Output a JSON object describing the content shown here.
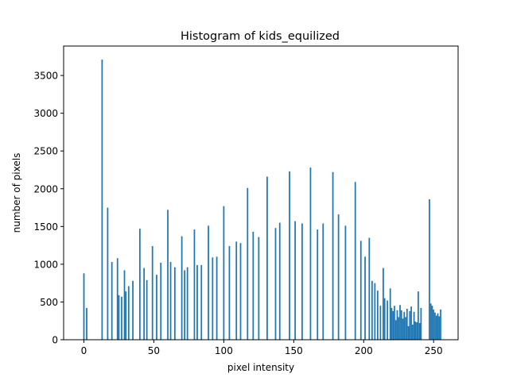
{
  "chart_data": {
    "type": "bar",
    "title": "Histogram of kids_equilized",
    "xlabel": "pixel intensity",
    "ylabel": "number of pixels",
    "xlim": [
      -14,
      268
    ],
    "ylim": [
      0,
      3500
    ],
    "xticks": [
      0,
      50,
      100,
      150,
      200,
      250
    ],
    "yticks": [
      0,
      500,
      1000,
      1500,
      2000,
      2500,
      3000,
      3500
    ],
    "ytick_labels": [
      "0",
      "500",
      "1000",
      "1500",
      "2000",
      "2500",
      "3000",
      "3500"
    ],
    "grid": false,
    "color": "#1f77b4",
    "bins": [
      {
        "x": 0,
        "y": 880
      },
      {
        "x": 2,
        "y": 420
      },
      {
        "x": 13,
        "y": 3710
      },
      {
        "x": 17,
        "y": 1750
      },
      {
        "x": 20,
        "y": 1030
      },
      {
        "x": 24,
        "y": 1080
      },
      {
        "x": 25,
        "y": 590
      },
      {
        "x": 27,
        "y": 570
      },
      {
        "x": 29,
        "y": 920
      },
      {
        "x": 30,
        "y": 640
      },
      {
        "x": 32,
        "y": 710
      },
      {
        "x": 35,
        "y": 780
      },
      {
        "x": 40,
        "y": 1470
      },
      {
        "x": 43,
        "y": 950
      },
      {
        "x": 45,
        "y": 790
      },
      {
        "x": 49,
        "y": 1240
      },
      {
        "x": 52,
        "y": 860
      },
      {
        "x": 55,
        "y": 1020
      },
      {
        "x": 60,
        "y": 1720
      },
      {
        "x": 62,
        "y": 1030
      },
      {
        "x": 65,
        "y": 960
      },
      {
        "x": 70,
        "y": 1370
      },
      {
        "x": 72,
        "y": 920
      },
      {
        "x": 74,
        "y": 960
      },
      {
        "x": 79,
        "y": 1460
      },
      {
        "x": 81,
        "y": 990
      },
      {
        "x": 84,
        "y": 990
      },
      {
        "x": 89,
        "y": 1510
      },
      {
        "x": 92,
        "y": 1090
      },
      {
        "x": 95,
        "y": 1100
      },
      {
        "x": 100,
        "y": 1770
      },
      {
        "x": 104,
        "y": 1240
      },
      {
        "x": 109,
        "y": 1300
      },
      {
        "x": 112,
        "y": 1280
      },
      {
        "x": 117,
        "y": 2010
      },
      {
        "x": 121,
        "y": 1430
      },
      {
        "x": 125,
        "y": 1360
      },
      {
        "x": 131,
        "y": 2160
      },
      {
        "x": 137,
        "y": 1480
      },
      {
        "x": 140,
        "y": 1550
      },
      {
        "x": 147,
        "y": 2230
      },
      {
        "x": 151,
        "y": 1570
      },
      {
        "x": 156,
        "y": 1540
      },
      {
        "x": 162,
        "y": 2280
      },
      {
        "x": 167,
        "y": 1460
      },
      {
        "x": 171,
        "y": 1540
      },
      {
        "x": 178,
        "y": 2220
      },
      {
        "x": 182,
        "y": 1660
      },
      {
        "x": 187,
        "y": 1510
      },
      {
        "x": 194,
        "y": 2090
      },
      {
        "x": 198,
        "y": 1310
      },
      {
        "x": 201,
        "y": 1100
      },
      {
        "x": 204,
        "y": 1350
      },
      {
        "x": 206,
        "y": 780
      },
      {
        "x": 208,
        "y": 750
      },
      {
        "x": 210,
        "y": 650
      },
      {
        "x": 212,
        "y": 450
      },
      {
        "x": 214,
        "y": 950
      },
      {
        "x": 215,
        "y": 550
      },
      {
        "x": 217,
        "y": 520
      },
      {
        "x": 219,
        "y": 680
      },
      {
        "x": 220,
        "y": 420
      },
      {
        "x": 221,
        "y": 380
      },
      {
        "x": 222,
        "y": 450
      },
      {
        "x": 223,
        "y": 260
      },
      {
        "x": 224,
        "y": 390
      },
      {
        "x": 225,
        "y": 300
      },
      {
        "x": 226,
        "y": 460
      },
      {
        "x": 227,
        "y": 390
      },
      {
        "x": 228,
        "y": 280
      },
      {
        "x": 229,
        "y": 370
      },
      {
        "x": 230,
        "y": 300
      },
      {
        "x": 231,
        "y": 410
      },
      {
        "x": 232,
        "y": 180
      },
      {
        "x": 233,
        "y": 380
      },
      {
        "x": 234,
        "y": 440
      },
      {
        "x": 235,
        "y": 200
      },
      {
        "x": 236,
        "y": 370
      },
      {
        "x": 237,
        "y": 240
      },
      {
        "x": 238,
        "y": 230
      },
      {
        "x": 239,
        "y": 640
      },
      {
        "x": 240,
        "y": 220
      },
      {
        "x": 241,
        "y": 420
      },
      {
        "x": 247,
        "y": 1860
      },
      {
        "x": 248,
        "y": 480
      },
      {
        "x": 249,
        "y": 450
      },
      {
        "x": 250,
        "y": 400
      },
      {
        "x": 251,
        "y": 360
      },
      {
        "x": 252,
        "y": 320
      },
      {
        "x": 253,
        "y": 350
      },
      {
        "x": 254,
        "y": 310
      },
      {
        "x": 255,
        "y": 400
      }
    ]
  }
}
